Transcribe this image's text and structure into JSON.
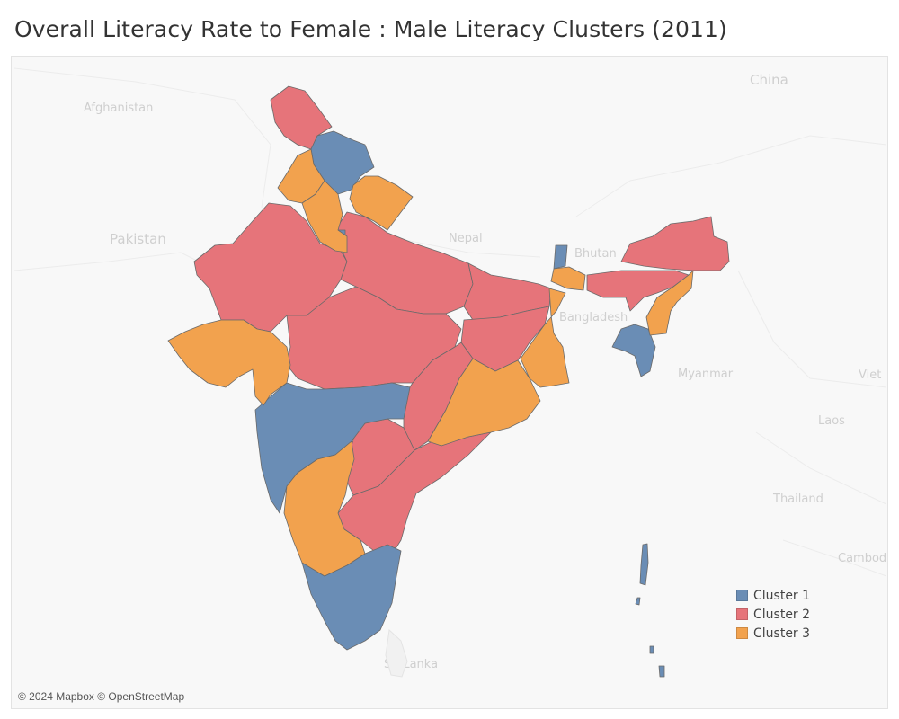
{
  "title": "Overall Literacy Rate to Female : Male Literacy Clusters (2011)",
  "colors": {
    "cluster1": "#6a8db5",
    "cluster2": "#e6747a",
    "cluster3": "#f2a24e",
    "background": "#f8f8f8"
  },
  "map_labels": {
    "afghanistan": "Afghanistan",
    "pakistan": "Pakistan",
    "china": "China",
    "nepal": "Nepal",
    "bhutan": "Bhutan",
    "bangladesh": "Bangladesh",
    "myanmar": "Myanmar",
    "laos": "Laos",
    "thailand": "Thailand",
    "cambodia": "Cambodia",
    "sri_lanka": "Sri Lanka",
    "viet": "Viet"
  },
  "legend": [
    {
      "label": "Cluster 1",
      "color": "#6a8db5"
    },
    {
      "label": "Cluster 2",
      "color": "#e6747a"
    },
    {
      "label": "Cluster 3",
      "color": "#f2a24e"
    }
  ],
  "attribution": "© 2024 Mapbox © OpenStreetMap"
}
